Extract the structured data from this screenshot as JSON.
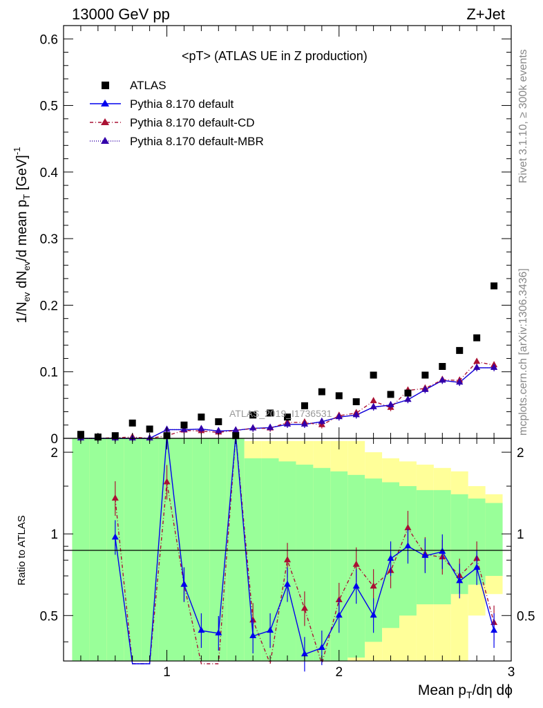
{
  "header": {
    "left": "13000 GeV pp",
    "right": "Z+Jet"
  },
  "side": {
    "rivet": "Rivet 3.1.10, ≥ 300k events",
    "mcplots": "mcplots.cern.ch [arXiv:1306.3436]"
  },
  "watermark": "ATLAS_2019_I1736531",
  "legend": {
    "title": "<pT> (ATLAS UE in Z production)",
    "items": [
      "ATLAS",
      "Pythia 8.170 default",
      "Pythia 8.170 default-CD",
      "Pythia 8.170 default-MBR"
    ]
  },
  "colors": {
    "data": "#000000",
    "default": "#0000ee",
    "cd": "#aa1133",
    "mbr": "#3300aa",
    "band_inner": "#99ff99",
    "band_outer": "#ffff99"
  },
  "chart_data": {
    "type": "scatter",
    "xlabel": "Mean p_T/dη dφ",
    "ylabel": "1/N_ev dN_ev/d mean p_T [GeV]^-1",
    "ratio_ylabel": "Ratio to ATLAS",
    "xlim": [
      0.4,
      3.0
    ],
    "ylim": [
      0,
      0.62
    ],
    "ratio_ylim": [
      0.34,
      2.25
    ],
    "x_ticks": [
      "1",
      "2",
      "3"
    ],
    "y_ticks": [
      "0",
      "0.1",
      "0.2",
      "0.3",
      "0.4",
      "0.5",
      "0.6"
    ],
    "ratio_ticks": [
      "0.5",
      "1",
      "2"
    ],
    "x": [
      0.5,
      0.6,
      0.7,
      0.8,
      0.9,
      1.0,
      1.1,
      1.2,
      1.3,
      1.4,
      1.5,
      1.6,
      1.7,
      1.8,
      1.9,
      2.0,
      2.1,
      2.2,
      2.3,
      2.4,
      2.5,
      2.6,
      2.7,
      2.8,
      2.9
    ],
    "series": [
      {
        "name": "ATLAS",
        "values": [
          0.006,
          0.002,
          0.004,
          0.023,
          0.014,
          0.004,
          0.02,
          0.032,
          0.025,
          0.004,
          0.035,
          0.038,
          0.032,
          0.049,
          0.07,
          0.064,
          0.055,
          0.095,
          0.066,
          0.068,
          0.095,
          0.108,
          0.132,
          0.151,
          0.229
        ]
      },
      {
        "name": "Pythia 8.170 default",
        "values": [
          0.0,
          0.0,
          0.0,
          0.0,
          0.0,
          0.013,
          0.013,
          0.014,
          0.011,
          0.012,
          0.015,
          0.016,
          0.021,
          0.021,
          0.025,
          0.032,
          0.035,
          0.047,
          0.05,
          0.058,
          0.073,
          0.087,
          0.084,
          0.106,
          0.106
        ],
        "ratio": [
          null,
          null,
          0.97,
          0.3,
          0.3,
          3.0,
          0.65,
          0.44,
          0.43,
          3.0,
          0.42,
          0.44,
          0.65,
          0.36,
          0.38,
          0.5,
          0.64,
          0.5,
          0.81,
          0.9,
          0.83,
          0.86,
          0.67,
          0.75,
          0.44
        ]
      },
      {
        "name": "Pythia 8.170 default-CD",
        "values": [
          0.0,
          0.0,
          0.001,
          0.002,
          0.0,
          0.004,
          0.012,
          0.011,
          0.009,
          0.012,
          0.015,
          0.015,
          0.024,
          0.024,
          0.02,
          0.034,
          0.038,
          0.056,
          0.046,
          0.072,
          0.075,
          0.088,
          0.087,
          0.115,
          0.11
        ],
        "ratio": [
          null,
          null,
          1.35,
          0.3,
          0.3,
          1.55,
          0.65,
          0.3,
          0.3,
          3.0,
          0.48,
          0.3,
          0.8,
          0.53,
          0.3,
          0.57,
          0.77,
          0.64,
          0.73,
          1.05,
          0.84,
          0.82,
          0.7,
          0.81,
          0.47
        ]
      },
      {
        "name": "Pythia 8.170 default-MBR",
        "values": [
          0.0,
          0.0,
          0.0,
          0.0,
          0.0,
          0.013,
          0.013,
          0.014,
          0.011,
          0.012,
          0.015,
          0.016,
          0.021,
          0.021,
          0.025,
          0.032,
          0.035,
          0.047,
          0.05,
          0.058,
          0.073,
          0.087,
          0.084,
          0.106,
          0.106
        ]
      }
    ],
    "ratio_band_inner": [
      2.3,
      2.3,
      2.3,
      2.3,
      2.3,
      2.3,
      2.3,
      2.3,
      2.3,
      2.3,
      1.9,
      1.9,
      1.85,
      1.8,
      1.75,
      1.7,
      1.65,
      1.6,
      1.55,
      1.5,
      1.45,
      1.45,
      1.4,
      1.35,
      1.3
    ],
    "ratio_band_outer": [
      2.3,
      2.3,
      2.3,
      2.3,
      2.3,
      2.3,
      2.3,
      2.3,
      2.3,
      2.3,
      2.2,
      2.2,
      2.2,
      2.2,
      2.2,
      2.2,
      2.2,
      2.0,
      1.9,
      1.85,
      1.8,
      1.75,
      1.7,
      1.5,
      1.4
    ]
  }
}
